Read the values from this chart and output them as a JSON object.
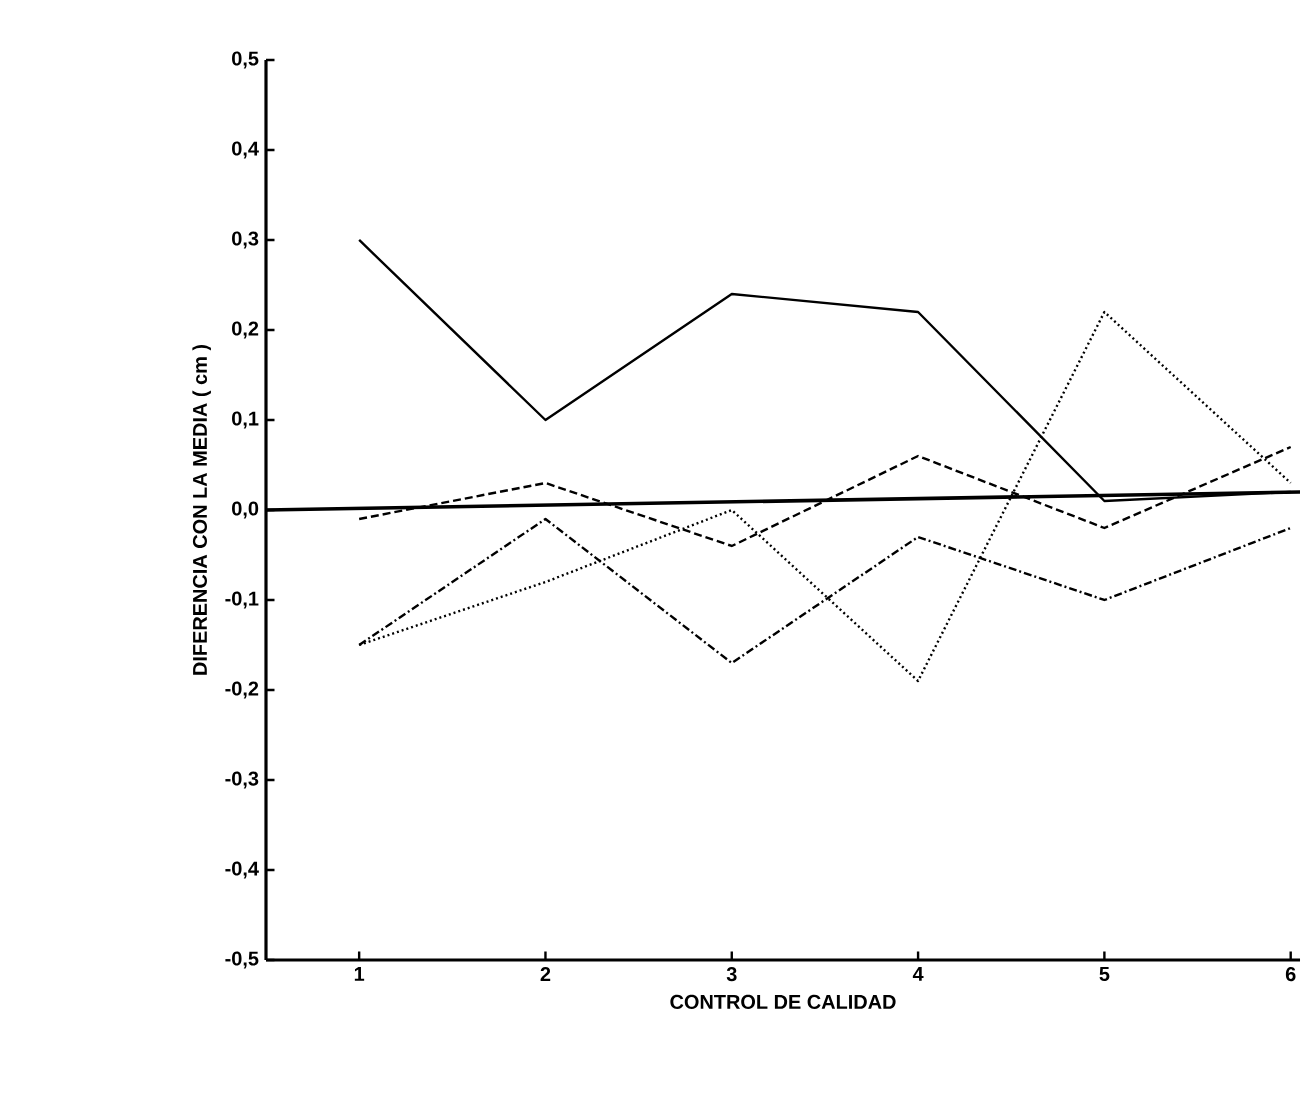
{
  "chart_data": {
    "type": "line",
    "xlabel": "CONTROL DE CALIDAD",
    "ylabel": "DIFERENCIA CON LA MEDIA ( cm )",
    "x": [
      1,
      2,
      3,
      4,
      5,
      6
    ],
    "xlim": [
      0.5,
      6.05
    ],
    "xticks": [
      1,
      2,
      3,
      4,
      5,
      6
    ],
    "ylim": [
      -0.5,
      0.5
    ],
    "yticks": [
      {
        "value": -0.5,
        "label": "-0,5"
      },
      {
        "value": -0.4,
        "label": "-0,4"
      },
      {
        "value": -0.3,
        "label": "-0,3"
      },
      {
        "value": -0.2,
        "label": "-0,2"
      },
      {
        "value": -0.1,
        "label": "-0,1"
      },
      {
        "value": 0,
        "label": "0,0"
      },
      {
        "value": 0.1,
        "label": "0,1"
      },
      {
        "value": 0.2,
        "label": "0,2"
      },
      {
        "value": 0.3,
        "label": "0,3"
      },
      {
        "value": 0.4,
        "label": "0,4"
      },
      {
        "value": 0.5,
        "label": "0,5"
      }
    ],
    "grid": false,
    "series": [
      {
        "color": "#000000",
        "line_style": "solid",
        "values": [
          0.3,
          0.1,
          0.24,
          0.22,
          0.01,
          0.02
        ]
      },
      {
        "color": "#000000",
        "line_style": "dashdot",
        "values": [
          -0.15,
          -0.01,
          -0.17,
          -0.03,
          -0.1,
          -0.02
        ]
      },
      {
        "color": "#000000",
        "line_style": "dashed",
        "values": [
          -0.01,
          0.03,
          -0.04,
          0.06,
          -0.02,
          0.07
        ]
      },
      {
        "color": "#000000",
        "line_style": "dotted",
        "values": [
          -0.15,
          -0.08,
          0.0,
          -0.19,
          0.22,
          0.03
        ]
      },
      {
        "color": "#000000",
        "line_style": "solid",
        "x": [
          0.5,
          6.05
        ],
        "values": [
          0.0,
          0.02
        ]
      }
    ]
  }
}
